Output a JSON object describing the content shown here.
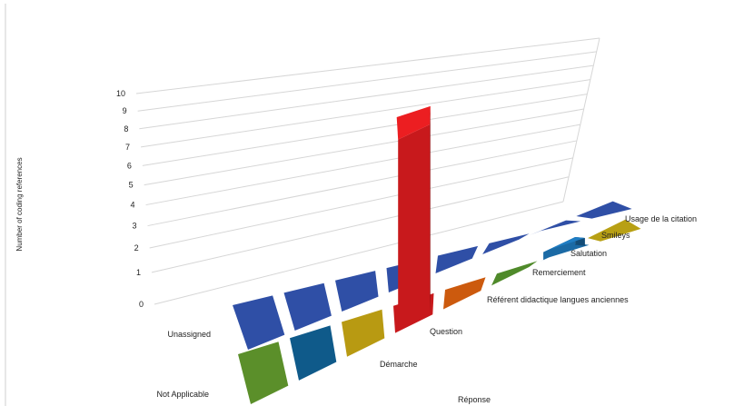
{
  "chart_data": {
    "type": "bar",
    "title": "",
    "ylabel": "Number of coding references",
    "xlabel": "Réponse",
    "ylim": [
      0,
      10
    ],
    "yticks": [
      0,
      1,
      2,
      3,
      4,
      5,
      6,
      7,
      8,
      9,
      10
    ],
    "grid": true,
    "categories": [
      "Unassigned",
      "Démarche",
      "Question",
      "Référent didactique langues anciennes",
      "Remerciement",
      "Salutation",
      "Smileys",
      "Usage de la citation"
    ],
    "rows": [
      "Not Applicable",
      "Unassigned"
    ],
    "series": [
      {
        "name": "Not Applicable",
        "color": "#2f4fa6",
        "values": [
          0,
          0,
          0,
          0,
          0,
          0,
          0,
          0
        ]
      },
      {
        "name": "Unassigned",
        "colors": [
          "#5b8f2a",
          "#0f5a8a",
          "#b89a12",
          "#c8191c",
          "#cc5a0e",
          "#4f8a2a",
          "#1b6aa5",
          "#b8a014"
        ],
        "values": [
          0,
          0,
          0,
          10,
          0,
          0,
          0.5,
          0
        ]
      }
    ]
  }
}
